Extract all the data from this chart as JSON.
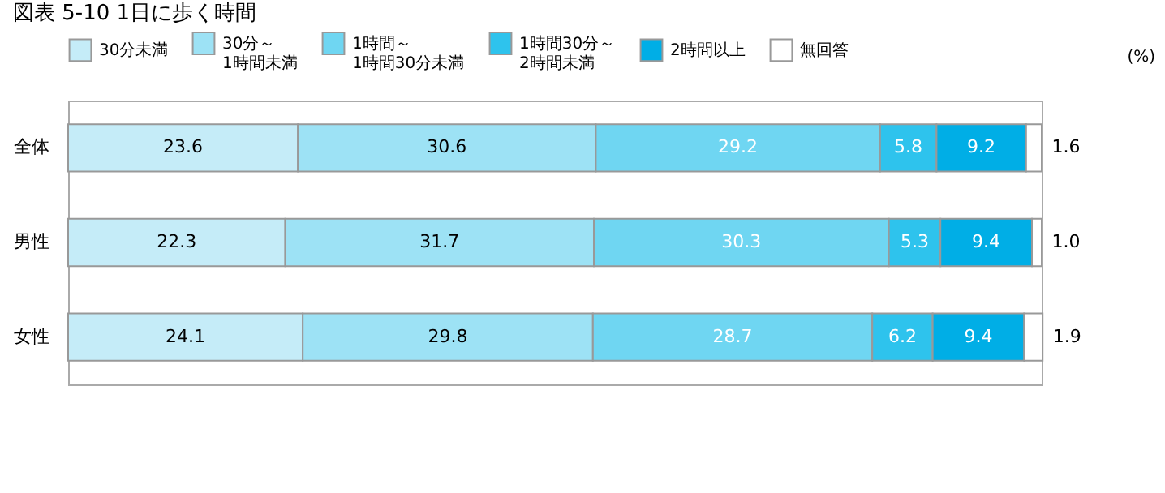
{
  "chart_data": {
    "type": "bar",
    "title": "図表 5-10 1日に歩く時間",
    "orientation": "horizontal",
    "stacked": true,
    "categories": [
      "全体",
      "男性",
      "女性"
    ],
    "series": [
      {
        "name": "30分未満",
        "color": "#c5ecf8",
        "values": [
          23.6,
          22.3,
          24.1
        ]
      },
      {
        "name": "30分～\n1時間未満",
        "color": "#9de2f5",
        "values": [
          30.6,
          31.7,
          29.8
        ]
      },
      {
        "name": "1時間～\n1時間30分未満",
        "color": "#6fd6f2",
        "values": [
          29.2,
          30.3,
          28.7
        ]
      },
      {
        "name": "1時間30分～\n2時間未満",
        "color": "#2ec3ed",
        "values": [
          5.8,
          5.3,
          6.2
        ]
      },
      {
        "name": "2時間以上",
        "color": "#00aee6",
        "values": [
          9.2,
          9.4,
          9.4
        ]
      },
      {
        "name": "無回答",
        "color": "#ffffff",
        "values": [
          1.6,
          1.0,
          1.9
        ],
        "value_labels": [
          "1.6",
          "1.0",
          "1.9"
        ]
      }
    ],
    "xlim": [
      0,
      100
    ],
    "tick_labels": "y",
    "data_labels": true,
    "legend": "top",
    "annotations": [
      "(%)"
    ]
  }
}
